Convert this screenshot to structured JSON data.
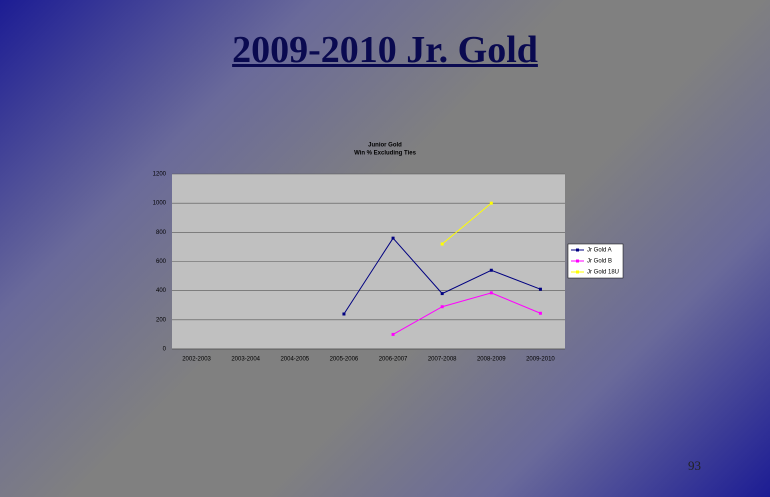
{
  "slide": {
    "title": "2009-2010 Jr. Gold",
    "page_number": "93"
  },
  "chart_data": {
    "type": "line",
    "title": "Junior Gold",
    "subtitle": "Win % Excluding Ties",
    "categories": [
      "2002-2003",
      "2003-2004",
      "2004-2005",
      "2005-2006",
      "2006-2007",
      "2007-2008",
      "2008-2009",
      "2009-2010"
    ],
    "series": [
      {
        "name": "Jr Gold A",
        "color": "#000080",
        "values": [
          null,
          null,
          null,
          240,
          760,
          380,
          540,
          410
        ]
      },
      {
        "name": "Jr Gold B",
        "color": "#ff00ff",
        "values": [
          null,
          null,
          null,
          null,
          100,
          290,
          385,
          245
        ]
      },
      {
        "name": "Jr Gold 18U",
        "color": "#ffff00",
        "values": [
          null,
          null,
          null,
          null,
          null,
          720,
          1000,
          null
        ]
      }
    ],
    "ylim": [
      0,
      1200
    ],
    "yticks": [
      0,
      200,
      400,
      600,
      800,
      1000,
      1200
    ],
    "grid": true,
    "legend": "right"
  }
}
